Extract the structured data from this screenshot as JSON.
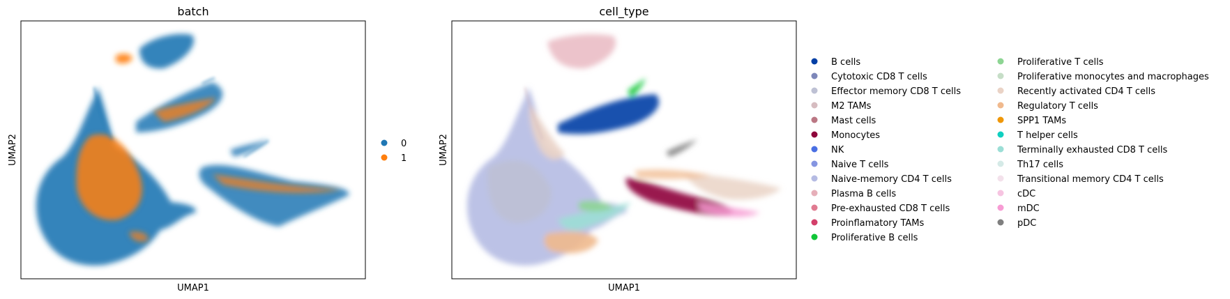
{
  "chart_data": [
    {
      "type": "scatter",
      "title": "batch",
      "xlabel": "UMAP1",
      "ylabel": "UMAP2",
      "legend_placement": "right",
      "grid": false,
      "ticks": false,
      "series": [
        {
          "name": "0",
          "color": "#1f77b4"
        },
        {
          "name": "1",
          "color": "#ff7f0e"
        }
      ]
    },
    {
      "type": "scatter",
      "title": "cell_type",
      "xlabel": "UMAP1",
      "ylabel": "UMAP2",
      "legend_placement": "right",
      "legend_columns": 2,
      "grid": false,
      "ticks": false,
      "series": [
        {
          "name": "B cells",
          "color": "#023fa5"
        },
        {
          "name": "Cytotoxic CD8 T cells",
          "color": "#7d87b9"
        },
        {
          "name": "Effector memory CD8 T cells",
          "color": "#bec1d4"
        },
        {
          "name": "M2 TAMs",
          "color": "#d6bcc0"
        },
        {
          "name": "Mast cells",
          "color": "#bb7784"
        },
        {
          "name": "Monocytes",
          "color": "#8e063b"
        },
        {
          "name": "NK",
          "color": "#4a6fe3"
        },
        {
          "name": "Naive T cells",
          "color": "#8595e1"
        },
        {
          "name": "Naive-memory CD4 T cells",
          "color": "#b5bbe3"
        },
        {
          "name": "Plasma B cells",
          "color": "#e6afb9"
        },
        {
          "name": "Pre-exhausted CD8 T cells",
          "color": "#e07b91"
        },
        {
          "name": "Proinflamatory TAMs",
          "color": "#d33f6a"
        },
        {
          "name": "Proliferative B cells",
          "color": "#11c638"
        },
        {
          "name": "Proliferative T cells",
          "color": "#8dd593"
        },
        {
          "name": "Proliferative monocytes and macrophages",
          "color": "#c6dec7"
        },
        {
          "name": "Recently activated CD4 T cells",
          "color": "#ead3c6"
        },
        {
          "name": "Regulatory T cells",
          "color": "#f0b98d"
        },
        {
          "name": "SPP1 TAMs",
          "color": "#ef9708"
        },
        {
          "name": "T helper cells",
          "color": "#0fcfc0"
        },
        {
          "name": "Terminally exhausted CD8 T cells",
          "color": "#9cded6"
        },
        {
          "name": "Th17 cells",
          "color": "#d5eae7"
        },
        {
          "name": "Transitional memory CD4 T cells",
          "color": "#f3e1eb"
        },
        {
          "name": "cDC",
          "color": "#f6c4e1"
        },
        {
          "name": "mDC",
          "color": "#f79cd4"
        },
        {
          "name": "pDC",
          "color": "#7f7f7f"
        }
      ]
    }
  ]
}
